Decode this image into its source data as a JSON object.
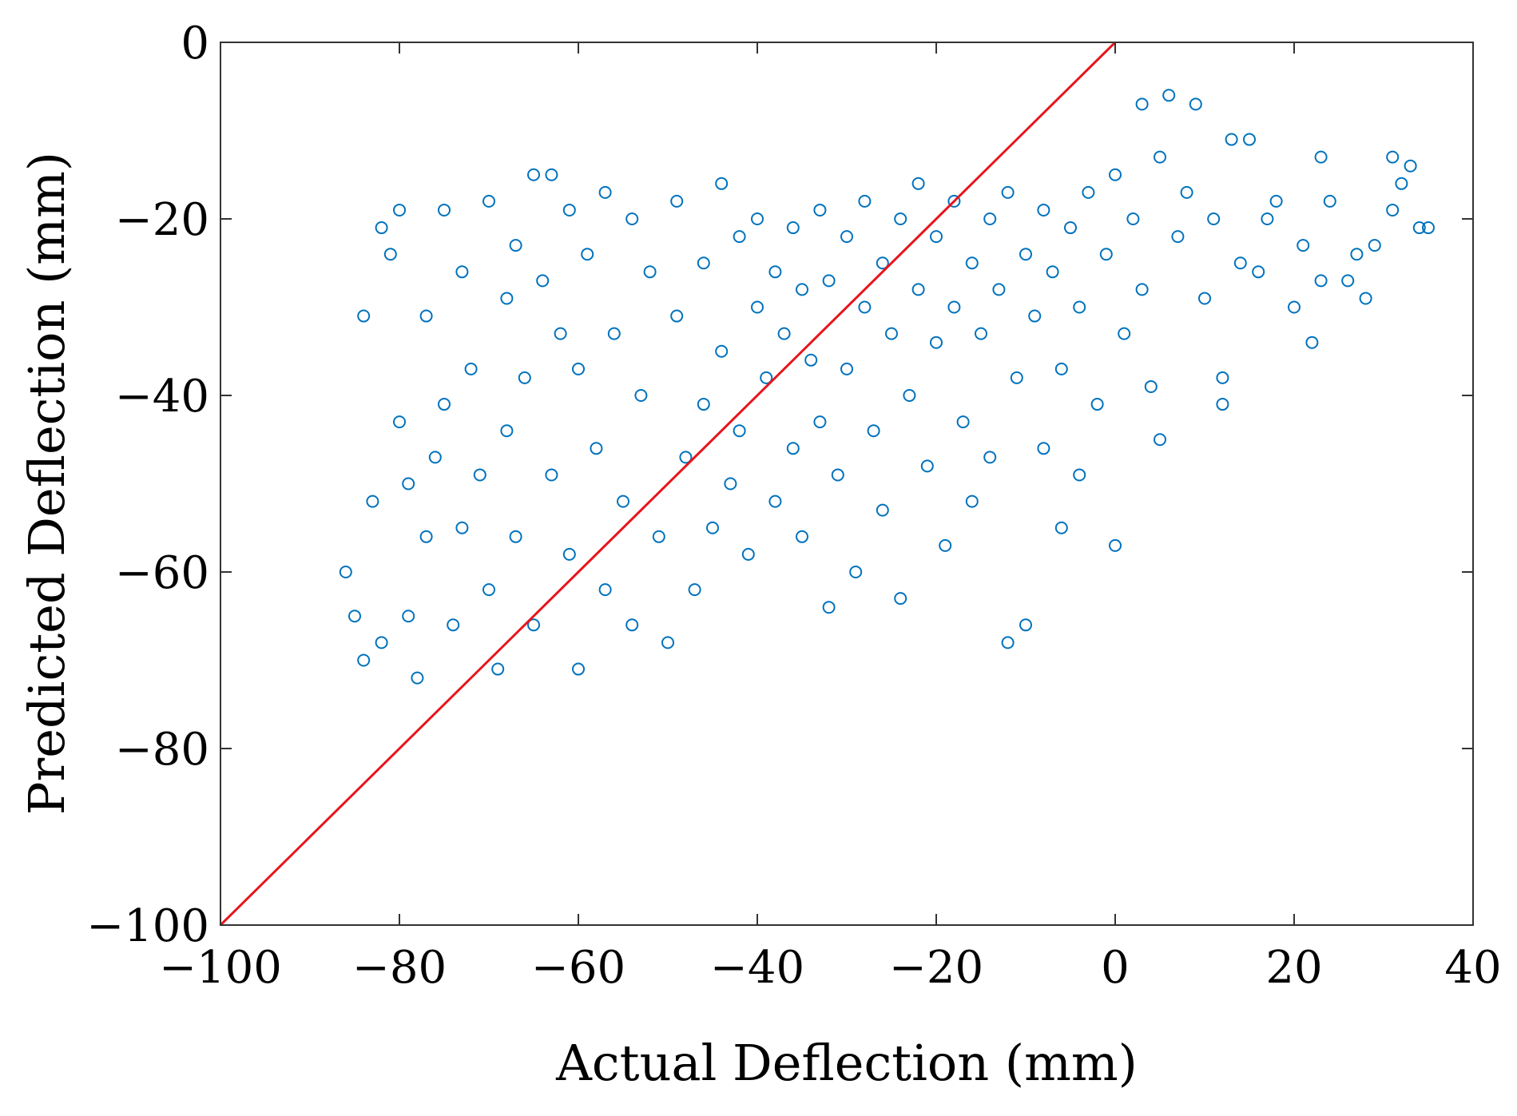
{
  "chart_data": {
    "type": "scatter",
    "title": "",
    "xlabel": "Actual Deflection (mm)",
    "ylabel": "Predicted Deflection (mm)",
    "xlim": [
      -100,
      40
    ],
    "ylim": [
      -100,
      0
    ],
    "x_ticks": [
      -100,
      -80,
      -60,
      -40,
      -20,
      0,
      20,
      40
    ],
    "y_ticks": [
      -100,
      -80,
      -60,
      -40,
      -20,
      0
    ],
    "x_tick_labels": [
      "−100",
      "−80",
      "−60",
      "−40",
      "−20",
      "0",
      "20",
      "40"
    ],
    "y_tick_labels": [
      "−100",
      "−80",
      "−60",
      "−40",
      "−20",
      "0"
    ],
    "grid": false,
    "legend": "none",
    "marker": "open-circle",
    "colors": {
      "points": "#0072BD",
      "reference_line": "#E8141C",
      "axes": "#333333"
    },
    "reference_line": {
      "x": [
        -100,
        0
      ],
      "y": [
        -100,
        0
      ]
    },
    "series": [
      {
        "points": [
          [
            -86,
            -60
          ],
          [
            -85,
            -65
          ],
          [
            -84,
            -70
          ],
          [
            -84,
            -31
          ],
          [
            -83,
            -52
          ],
          [
            -82,
            -21
          ],
          [
            -82,
            -68
          ],
          [
            -81,
            -24
          ],
          [
            -80,
            -19
          ],
          [
            -80,
            -43
          ],
          [
            -79,
            -50
          ],
          [
            -79,
            -65
          ],
          [
            -78,
            -72
          ],
          [
            -77,
            -31
          ],
          [
            -77,
            -56
          ],
          [
            -76,
            -47
          ],
          [
            -75,
            -19
          ],
          [
            -75,
            -41
          ],
          [
            -74,
            -66
          ],
          [
            -73,
            -26
          ],
          [
            -73,
            -55
          ],
          [
            -72,
            -37
          ],
          [
            -71,
            -49
          ],
          [
            -70,
            -18
          ],
          [
            -70,
            -62
          ],
          [
            -69,
            -71
          ],
          [
            -68,
            -29
          ],
          [
            -68,
            -44
          ],
          [
            -67,
            -23
          ],
          [
            -67,
            -56
          ],
          [
            -66,
            -38
          ],
          [
            -65,
            -15
          ],
          [
            -65,
            -66
          ],
          [
            -64,
            -27
          ],
          [
            -63,
            -15
          ],
          [
            -63,
            -49
          ],
          [
            -62,
            -33
          ],
          [
            -61,
            -19
          ],
          [
            -61,
            -58
          ],
          [
            -60,
            -37
          ],
          [
            -60,
            -71
          ],
          [
            -59,
            -24
          ],
          [
            -58,
            -46
          ],
          [
            -57,
            -17
          ],
          [
            -57,
            -62
          ],
          [
            -56,
            -33
          ],
          [
            -55,
            -52
          ],
          [
            -54,
            -20
          ],
          [
            -54,
            -66
          ],
          [
            -53,
            -40
          ],
          [
            -52,
            -26
          ],
          [
            -51,
            -56
          ],
          [
            -50,
            -68
          ],
          [
            -49,
            -18
          ],
          [
            -49,
            -31
          ],
          [
            -48,
            -47
          ],
          [
            -47,
            -62
          ],
          [
            -46,
            -25
          ],
          [
            -46,
            -41
          ],
          [
            -45,
            -55
          ],
          [
            -44,
            -16
          ],
          [
            -44,
            -35
          ],
          [
            -43,
            -50
          ],
          [
            -42,
            -22
          ],
          [
            -42,
            -44
          ],
          [
            -41,
            -58
          ],
          [
            -40,
            -30
          ],
          [
            -40,
            -20
          ],
          [
            -39,
            -38
          ],
          [
            -38,
            -52
          ],
          [
            -38,
            -26
          ],
          [
            -37,
            -33
          ],
          [
            -36,
            -21
          ],
          [
            -36,
            -46
          ],
          [
            -35,
            -28
          ],
          [
            -35,
            -56
          ],
          [
            -34,
            -36
          ],
          [
            -33,
            -19
          ],
          [
            -33,
            -43
          ],
          [
            -32,
            -64
          ],
          [
            -32,
            -27
          ],
          [
            -31,
            -49
          ],
          [
            -30,
            -22
          ],
          [
            -30,
            -37
          ],
          [
            -29,
            -60
          ],
          [
            -28,
            -30
          ],
          [
            -28,
            -18
          ],
          [
            -27,
            -44
          ],
          [
            -26,
            -25
          ],
          [
            -26,
            -53
          ],
          [
            -25,
            -33
          ],
          [
            -24,
            -20
          ],
          [
            -24,
            -63
          ],
          [
            -23,
            -40
          ],
          [
            -22,
            -28
          ],
          [
            -22,
            -16
          ],
          [
            -21,
            -48
          ],
          [
            -20,
            -34
          ],
          [
            -20,
            -22
          ],
          [
            -19,
            -57
          ],
          [
            -18,
            -30
          ],
          [
            -18,
            -18
          ],
          [
            -17,
            -43
          ],
          [
            -16,
            -25
          ],
          [
            -16,
            -52
          ],
          [
            -15,
            -33
          ],
          [
            -14,
            -20
          ],
          [
            -14,
            -47
          ],
          [
            -13,
            -28
          ],
          [
            -12,
            -68
          ],
          [
            -12,
            -17
          ],
          [
            -11,
            -38
          ],
          [
            -10,
            -24
          ],
          [
            -10,
            -66
          ],
          [
            -9,
            -31
          ],
          [
            -8,
            -19
          ],
          [
            -8,
            -46
          ],
          [
            -7,
            -26
          ],
          [
            -6,
            -55
          ],
          [
            -6,
            -37
          ],
          [
            -5,
            -21
          ],
          [
            -4,
            -49
          ],
          [
            -4,
            -30
          ],
          [
            -3,
            -17
          ],
          [
            -2,
            -41
          ],
          [
            -1,
            -24
          ],
          [
            0,
            -57
          ],
          [
            0,
            -15
          ],
          [
            1,
            -33
          ],
          [
            2,
            -20
          ],
          [
            3,
            -7
          ],
          [
            3,
            -28
          ],
          [
            4,
            -39
          ],
          [
            5,
            -13
          ],
          [
            5,
            -45
          ],
          [
            6,
            -6
          ],
          [
            7,
            -22
          ],
          [
            8,
            -17
          ],
          [
            9,
            -7
          ],
          [
            10,
            -29
          ],
          [
            11,
            -20
          ],
          [
            12,
            -41
          ],
          [
            12,
            -38
          ],
          [
            13,
            -11
          ],
          [
            14,
            -25
          ],
          [
            15,
            -11
          ],
          [
            16,
            -26
          ],
          [
            17,
            -20
          ],
          [
            18,
            -18
          ],
          [
            20,
            -30
          ],
          [
            21,
            -23
          ],
          [
            22,
            -34
          ],
          [
            23,
            -13
          ],
          [
            23,
            -27
          ],
          [
            24,
            -18
          ],
          [
            26,
            -27
          ],
          [
            27,
            -24
          ],
          [
            28,
            -29
          ],
          [
            29,
            -23
          ],
          [
            31,
            -13
          ],
          [
            31,
            -19
          ],
          [
            32,
            -16
          ],
          [
            33,
            -14
          ],
          [
            34,
            -21
          ],
          [
            35,
            -21
          ]
        ]
      }
    ]
  }
}
